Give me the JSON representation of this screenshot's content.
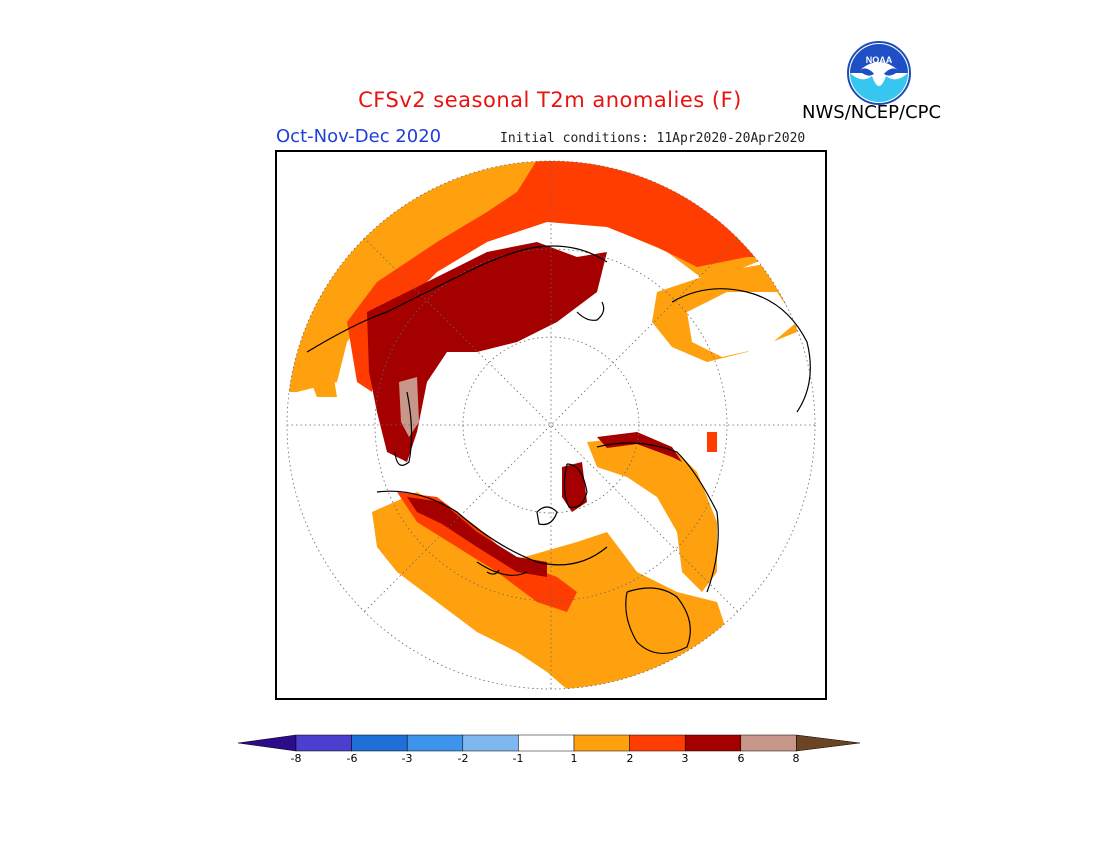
{
  "header": {
    "title": "CFSv2 seasonal T2m anomalies (F)",
    "season": "Oct-Nov-Dec 2020",
    "initial_conditions": "Initial conditions: 11Apr2020-20Apr2020",
    "agency": "NWS/NCEP/CPC",
    "logo_text": "NOAA"
  },
  "legend": {
    "ticks": [
      "-8",
      "-6",
      "-3",
      "-2",
      "-1",
      "1",
      "2",
      "3",
      "6",
      "8"
    ],
    "colors": [
      "#2d0b8a",
      "#4b3fcf",
      "#1e6fd6",
      "#3d94ea",
      "#7fb8f0",
      "#ffffff",
      "#ffa10f",
      "#ff3d00",
      "#a50000",
      "#c8978a",
      "#6b4423"
    ]
  }
}
